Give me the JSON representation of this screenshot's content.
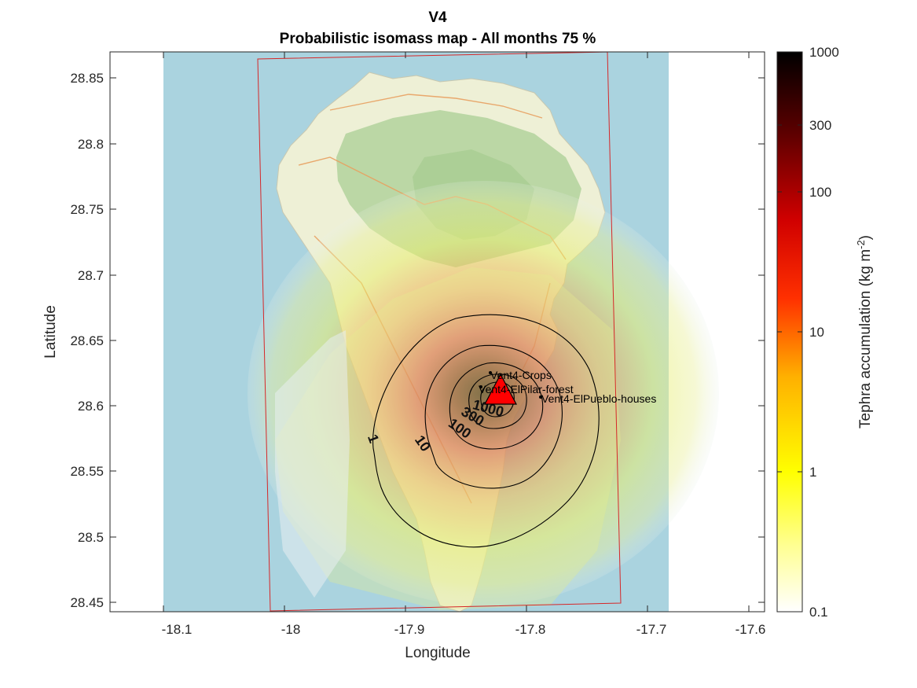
{
  "figure": {
    "title": "V4",
    "subtitle": "Probabilistic isomass map - All months 75 %",
    "xlabel": "Longitude",
    "ylabel": "Latitude",
    "x_ticks": [
      "-18.1",
      "-18",
      "-17.9",
      "-17.8",
      "-17.7",
      "-17.6"
    ],
    "y_ticks": [
      "28.85",
      "28.8",
      "28.75",
      "28.7",
      "28.65",
      "28.6",
      "28.55",
      "28.5",
      "28.45"
    ]
  },
  "colorbar": {
    "label": "Tephra accumulation (kg m",
    "label_sup": "-2",
    "label_end": ")",
    "ticks": [
      "1000",
      "300",
      "100",
      "10",
      "1",
      "0.1"
    ],
    "scale": "log",
    "range": [
      0.1,
      1000
    ],
    "colormap": [
      "#ffffff",
      "#ffff80",
      "#ffff00",
      "#ffa000",
      "#ff0000",
      "#b00000",
      "#500000",
      "#000000"
    ]
  },
  "contours": {
    "levels": [
      "1",
      "10",
      "100",
      "300",
      "1000"
    ]
  },
  "markers": {
    "vent_color": "#ff0000",
    "sites": [
      {
        "label": "Vent4-Crops"
      },
      {
        "label": "Vent4-ElPilar-forest"
      },
      {
        "label": "Vent4-ElPueblo-houses"
      }
    ]
  },
  "colors": {
    "sea": "#aad3df",
    "land": "#eef0d8",
    "forest": "#add19e",
    "domain_box": "#d62728"
  }
}
